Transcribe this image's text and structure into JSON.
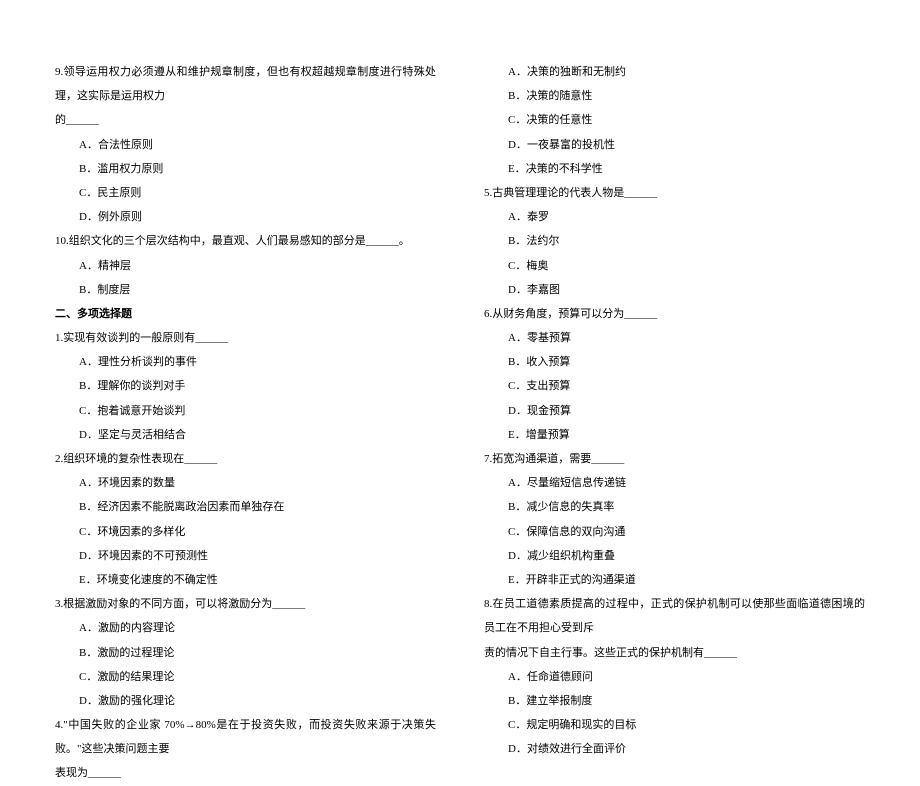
{
  "left_column": {
    "q9": {
      "text_line1": "9.领导运用权力必须遵从和维护规章制度，但也有权超越规章制度进行特殊处理，这实际是运用权力",
      "text_line2": "的______",
      "options": {
        "a": "A．合法性原则",
        "b": "B．滥用权力原则",
        "c": "C．民主原则",
        "d": "D．例外原则"
      }
    },
    "q10": {
      "text": "10.组织文化的三个层次结构中，最直观、人们最易感知的部分是______。",
      "options": {
        "a": "A．精神层",
        "b": "B．制度层"
      }
    },
    "section2_header": "二、多项选择题",
    "mc_q1": {
      "text": "1.实现有效谈判的一般原则有______",
      "options": {
        "a": "A．理性分析谈判的事件",
        "b": "B．理解你的谈判对手",
        "c": "C．抱着诚意开始谈判",
        "d": "D．坚定与灵活相结合"
      }
    },
    "mc_q2": {
      "text": "2.组织环境的复杂性表现在______",
      "options": {
        "a": "A．环境因素的数量",
        "b": "B．经济因素不能脱离政治因素而单独存在",
        "c": "C．环境因素的多样化",
        "d": "D．环境因素的不可预测性",
        "e": "E．环境变化速度的不确定性"
      }
    },
    "mc_q3": {
      "text": "3.根据激励对象的不同方面，可以将激励分为______",
      "options": {
        "a": "A．激励的内容理论",
        "b": "B．激励的过程理论",
        "c": "C．激励的结果理论",
        "d": "D．激励的强化理论"
      }
    },
    "mc_q4": {
      "text_line1": "4.\"中国失败的企业家 70%→80%是在于投资失败，而投资失败来源于决策失败。\"这些决策问题主要",
      "text_line2": "表现为______"
    }
  },
  "right_column": {
    "mc_q4_options": {
      "a": "A．决策的独断和无制约",
      "b": "B．决策的随意性",
      "c": "C．决策的任意性",
      "d": "D．一夜暴富的投机性",
      "e": "E．决策的不科学性"
    },
    "mc_q5": {
      "text": "5.古典管理理论的代表人物是______",
      "options": {
        "a": "A．泰罗",
        "b": "B．法约尔",
        "c": "C．梅奥",
        "d": "D．李嘉图"
      }
    },
    "mc_q6": {
      "text": "6.从财务角度，预算可以分为______",
      "options": {
        "a": "A．零基预算",
        "b": "B．收入预算",
        "c": "C．支出预算",
        "d": "D．现金预算",
        "e": "E．增量预算"
      }
    },
    "mc_q7": {
      "text": "7.拓宽沟通渠道，需要______",
      "options": {
        "a": "A．尽量缩短信息传递链",
        "b": "B．减少信息的失真率",
        "c": "C．保障信息的双向沟通",
        "d": "D．减少组织机构重叠",
        "e": "E．开辟非正式的沟通渠道"
      }
    },
    "mc_q8": {
      "text_line1": "8.在员工道德素质提高的过程中，正式的保护机制可以使那些面临道德困境的员工在不用担心受到斥",
      "text_line2": "责的情况下自主行事。这些正式的保护机制有______",
      "options": {
        "a": "A．任命道德顾问",
        "b": "B．建立举报制度",
        "c": "C．规定明确和现实的目标",
        "d": "D．对绩效进行全面评价"
      }
    }
  }
}
